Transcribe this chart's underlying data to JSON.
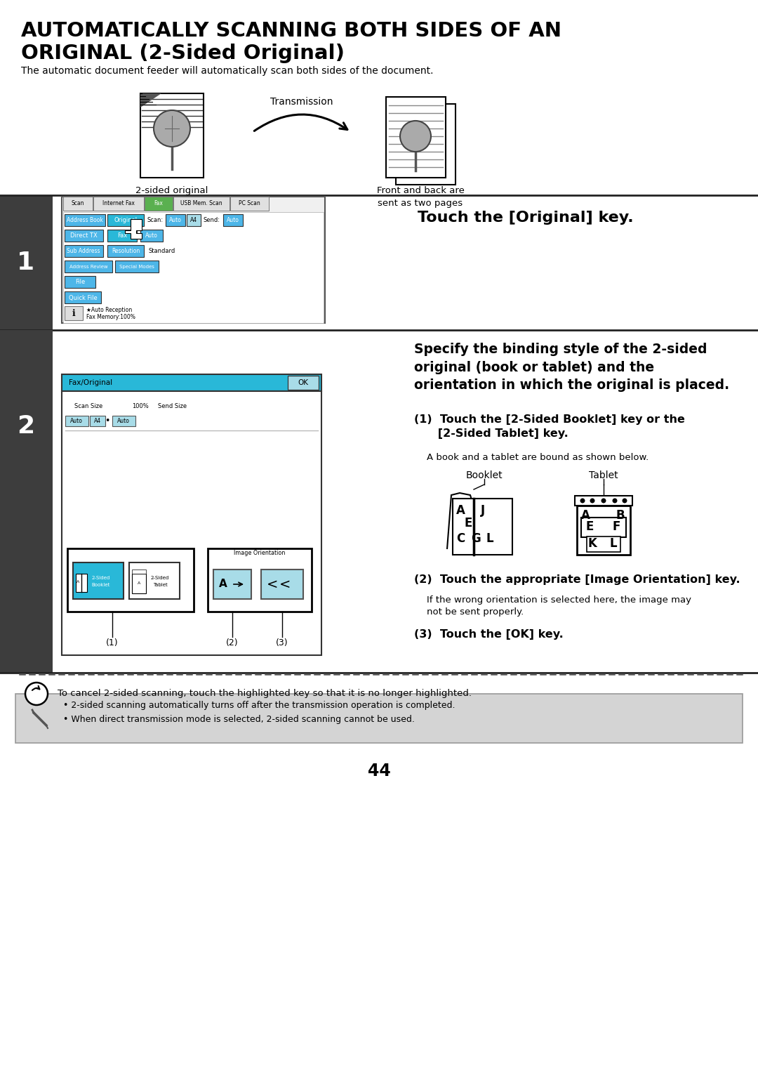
{
  "title_line1": "AUTOMATICALLY SCANNING BOTH SIDES OF AN",
  "title_line2": "ORIGINAL (2-Sided Original)",
  "subtitle": "The automatic document feeder will automatically scan both sides of the document.",
  "transmission_label": "Transmission",
  "original_label": "2-sided original",
  "front_back_label": "Front and back are\nsent as two pages",
  "step1_label": "Touch the [Original] key.",
  "step2_label_bold": "Specify the binding style of the 2-sided\noriginal (book or tablet) and the\norientation in which the original is placed.",
  "step2_sub1_bold": "(1)  Touch the [2-Sided Booklet] key or the\n      [2-Sided Tablet] key.",
  "step2_sub1_text": "A book and a tablet are bound as shown below.",
  "booklet_label": "Booklet",
  "tablet_label": "Tablet",
  "step2_sub2_bold": "(2)  Touch the appropriate [Image Orientation] key.",
  "step2_sub2_text": "If the wrong orientation is selected here, the image may\nnot be sent properly.",
  "step2_sub3_bold": "(3)  Touch the [OK] key.",
  "cancel_note": "To cancel 2-sided scanning, touch the highlighted key so that it is no longer highlighted.",
  "note1": "• 2-sided scanning automatically turns off after the transmission operation is completed.",
  "note2": "• When direct transmission mode is selected, 2-sided scanning cannot be used.",
  "page_num": "44",
  "bg_color": "#ffffff",
  "dark_bg": "#3d3d3d",
  "note_bg": "#d4d4d4",
  "cyan_color": "#29b8d8",
  "light_cyan": "#a8dce8",
  "button_blue": "#4db6e8",
  "green_tab": "#5ab050",
  "tab_bg": "#e8e8e8"
}
